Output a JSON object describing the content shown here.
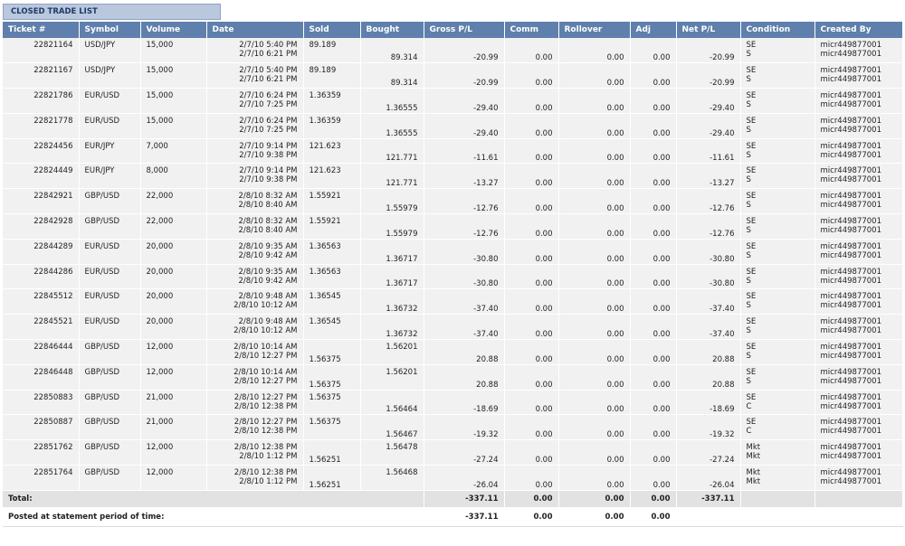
{
  "title": "CLOSED TRADE LIST",
  "columns": [
    "Ticket #",
    "Symbol",
    "Volume",
    "Date",
    "Sold",
    "Bought",
    "Gross P/L",
    "Comm",
    "Rollover",
    "Adj",
    "Net P/L",
    "Condition",
    "Created By"
  ],
  "rows": [
    {
      "ticket": "22821164",
      "symbol": "USD/JPY",
      "volume": "15,000",
      "date1": "2/7/10 5:40 PM",
      "date2": "2/7/10 6:21 PM",
      "sold": "89.189",
      "bought": "89.314",
      "gross": "-20.99",
      "comm": "0.00",
      "rollover": "0.00",
      "adj": "0.00",
      "net": "-20.99",
      "cond1": "SE",
      "cond2": "S",
      "by1": "micr449877001",
      "by2": "micr449877001"
    },
    {
      "ticket": "22821167",
      "symbol": "USD/JPY",
      "volume": "15,000",
      "date1": "2/7/10 5:40 PM",
      "date2": "2/7/10 6:21 PM",
      "sold": "89.189",
      "bought": "89.314",
      "gross": "-20.99",
      "comm": "0.00",
      "rollover": "0.00",
      "adj": "0.00",
      "net": "-20.99",
      "cond1": "SE",
      "cond2": "S",
      "by1": "micr449877001",
      "by2": "micr449877001"
    },
    {
      "ticket": "22821786",
      "symbol": "EUR/USD",
      "volume": "15,000",
      "date1": "2/7/10 6:24 PM",
      "date2": "2/7/10 7:25 PM",
      "sold": "1.36359",
      "bought": "1.36555",
      "gross": "-29.40",
      "comm": "0.00",
      "rollover": "0.00",
      "adj": "0.00",
      "net": "-29.40",
      "cond1": "SE",
      "cond2": "S",
      "by1": "micr449877001",
      "by2": "micr449877001"
    },
    {
      "ticket": "22821778",
      "symbol": "EUR/USD",
      "volume": "15,000",
      "date1": "2/7/10 6:24 PM",
      "date2": "2/7/10 7:25 PM",
      "sold": "1.36359",
      "bought": "1.36555",
      "gross": "-29.40",
      "comm": "0.00",
      "rollover": "0.00",
      "adj": "0.00",
      "net": "-29.40",
      "cond1": "SE",
      "cond2": "S",
      "by1": "micr449877001",
      "by2": "micr449877001"
    },
    {
      "ticket": "22824456",
      "symbol": "EUR/JPY",
      "volume": "7,000",
      "date1": "2/7/10 9:14 PM",
      "date2": "2/7/10 9:38 PM",
      "sold": "121.623",
      "bought": "121.771",
      "gross": "-11.61",
      "comm": "0.00",
      "rollover": "0.00",
      "adj": "0.00",
      "net": "-11.61",
      "cond1": "SE",
      "cond2": "S",
      "by1": "micr449877001",
      "by2": "micr449877001"
    },
    {
      "ticket": "22824449",
      "symbol": "EUR/JPY",
      "volume": "8,000",
      "date1": "2/7/10 9:14 PM",
      "date2": "2/7/10 9:38 PM",
      "sold": "121.623",
      "bought": "121.771",
      "gross": "-13.27",
      "comm": "0.00",
      "rollover": "0.00",
      "adj": "0.00",
      "net": "-13.27",
      "cond1": "SE",
      "cond2": "S",
      "by1": "micr449877001",
      "by2": "micr449877001"
    },
    {
      "ticket": "22842921",
      "symbol": "GBP/USD",
      "volume": "22,000",
      "date1": "2/8/10 8:32 AM",
      "date2": "2/8/10 8:40 AM",
      "sold": "1.55921",
      "bought": "1.55979",
      "gross": "-12.76",
      "comm": "0.00",
      "rollover": "0.00",
      "adj": "0.00",
      "net": "-12.76",
      "cond1": "SE",
      "cond2": "S",
      "by1": "micr449877001",
      "by2": "micr449877001"
    },
    {
      "ticket": "22842928",
      "symbol": "GBP/USD",
      "volume": "22,000",
      "date1": "2/8/10 8:32 AM",
      "date2": "2/8/10 8:40 AM",
      "sold": "1.55921",
      "bought": "1.55979",
      "gross": "-12.76",
      "comm": "0.00",
      "rollover": "0.00",
      "adj": "0.00",
      "net": "-12.76",
      "cond1": "SE",
      "cond2": "S",
      "by1": "micr449877001",
      "by2": "micr449877001"
    },
    {
      "ticket": "22844289",
      "symbol": "EUR/USD",
      "volume": "20,000",
      "date1": "2/8/10 9:35 AM",
      "date2": "2/8/10 9:42 AM",
      "sold": "1.36563",
      "bought": "1.36717",
      "gross": "-30.80",
      "comm": "0.00",
      "rollover": "0.00",
      "adj": "0.00",
      "net": "-30.80",
      "cond1": "SE",
      "cond2": "S",
      "by1": "micr449877001",
      "by2": "micr449877001"
    },
    {
      "ticket": "22844286",
      "symbol": "EUR/USD",
      "volume": "20,000",
      "date1": "2/8/10 9:35 AM",
      "date2": "2/8/10 9:42 AM",
      "sold": "1.36563",
      "bought": "1.36717",
      "gross": "-30.80",
      "comm": "0.00",
      "rollover": "0.00",
      "adj": "0.00",
      "net": "-30.80",
      "cond1": "SE",
      "cond2": "S",
      "by1": "micr449877001",
      "by2": "micr449877001"
    },
    {
      "ticket": "22845512",
      "symbol": "EUR/USD",
      "volume": "20,000",
      "date1": "2/8/10 9:48 AM",
      "date2": "2/8/10 10:12 AM",
      "sold": "1.36545",
      "bought": "1.36732",
      "gross": "-37.40",
      "comm": "0.00",
      "rollover": "0.00",
      "adj": "0.00",
      "net": "-37.40",
      "cond1": "SE",
      "cond2": "S",
      "by1": "micr449877001",
      "by2": "micr449877001"
    },
    {
      "ticket": "22845521",
      "symbol": "EUR/USD",
      "volume": "20,000",
      "date1": "2/8/10 9:48 AM",
      "date2": "2/8/10 10:12 AM",
      "sold": "1.36545",
      "bought": "1.36732",
      "gross": "-37.40",
      "comm": "0.00",
      "rollover": "0.00",
      "adj": "0.00",
      "net": "-37.40",
      "cond1": "SE",
      "cond2": "S",
      "by1": "micr449877001",
      "by2": "micr449877001"
    },
    {
      "ticket": "22846444",
      "symbol": "GBP/USD",
      "volume": "12,000",
      "date1": "2/8/10 10:14 AM",
      "date2": "2/8/10 12:27 PM",
      "sold": "1.56375",
      "bought": "1.56201",
      "gross": "20.88",
      "comm": "0.00",
      "rollover": "0.00",
      "adj": "0.00",
      "net": "20.88",
      "cond1": "SE",
      "cond2": "S",
      "by1": "micr449877001",
      "by2": "micr449877001",
      "boughtFirst": true
    },
    {
      "ticket": "22846448",
      "symbol": "GBP/USD",
      "volume": "12,000",
      "date1": "2/8/10 10:14 AM",
      "date2": "2/8/10 12:27 PM",
      "sold": "1.56375",
      "bought": "1.56201",
      "gross": "20.88",
      "comm": "0.00",
      "rollover": "0.00",
      "adj": "0.00",
      "net": "20.88",
      "cond1": "SE",
      "cond2": "S",
      "by1": "micr449877001",
      "by2": "micr449877001",
      "boughtFirst": true
    },
    {
      "ticket": "22850883",
      "symbol": "GBP/USD",
      "volume": "21,000",
      "date1": "2/8/10 12:27 PM",
      "date2": "2/8/10 12:38 PM",
      "sold": "1.56375",
      "bought": "1.56464",
      "gross": "-18.69",
      "comm": "0.00",
      "rollover": "0.00",
      "adj": "0.00",
      "net": "-18.69",
      "cond1": "SE",
      "cond2": "C",
      "by1": "micr449877001",
      "by2": "micr449877001"
    },
    {
      "ticket": "22850887",
      "symbol": "GBP/USD",
      "volume": "21,000",
      "date1": "2/8/10 12:27 PM",
      "date2": "2/8/10 12:38 PM",
      "sold": "1.56375",
      "bought": "1.56467",
      "gross": "-19.32",
      "comm": "0.00",
      "rollover": "0.00",
      "adj": "0.00",
      "net": "-19.32",
      "cond1": "SE",
      "cond2": "C",
      "by1": "micr449877001",
      "by2": "micr449877001"
    },
    {
      "ticket": "22851762",
      "symbol": "GBP/USD",
      "volume": "12,000",
      "date1": "2/8/10 12:38 PM",
      "date2": "2/8/10 1:12 PM",
      "sold": "1.56251",
      "bought": "1.56478",
      "gross": "-27.24",
      "comm": "0.00",
      "rollover": "0.00",
      "adj": "0.00",
      "net": "-27.24",
      "cond1": "Mkt",
      "cond2": "Mkt",
      "by1": "micr449877001",
      "by2": "micr449877001",
      "boughtFirst": true
    },
    {
      "ticket": "22851764",
      "symbol": "GBP/USD",
      "volume": "12,000",
      "date1": "2/8/10 12:38 PM",
      "date2": "2/8/10 1:12 PM",
      "sold": "1.56251",
      "bought": "1.56468",
      "gross": "-26.04",
      "comm": "0.00",
      "rollover": "0.00",
      "adj": "0.00",
      "net": "-26.04",
      "cond1": "Mkt",
      "cond2": "Mkt",
      "by1": "micr449877001",
      "by2": "micr449877001",
      "boughtFirst": true
    }
  ],
  "total": {
    "label": "Total:",
    "gross": "-337.11",
    "comm": "0.00",
    "rollover": "0.00",
    "adj": "0.00",
    "net": "-337.11"
  },
  "posted": {
    "label": "Posted at statement period of time:",
    "gross": "-337.11",
    "comm": "0.00",
    "rollover": "0.00",
    "adj": "0.00"
  }
}
